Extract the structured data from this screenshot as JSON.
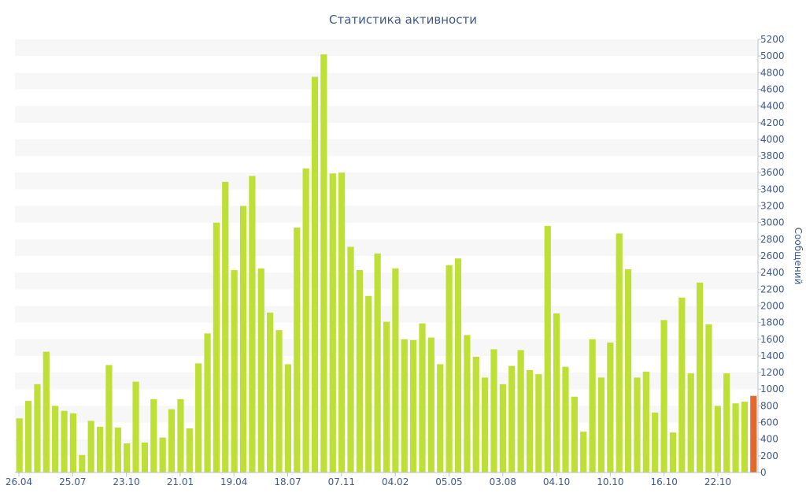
{
  "chart_data": {
    "type": "bar",
    "title": "Статистика активности",
    "ylabel": "Сообщений",
    "ylim": [
      0,
      5200
    ],
    "y_ticks": [
      0,
      200,
      400,
      600,
      800,
      1000,
      1200,
      1400,
      1600,
      1800,
      2000,
      2200,
      2400,
      2600,
      2800,
      3000,
      3200,
      3400,
      3600,
      3800,
      4000,
      4200,
      4400,
      4600,
      4800,
      5000,
      5200
    ],
    "x_tick_labels": [
      "26.04",
      "25.07",
      "23.10",
      "21.01",
      "19.04",
      "18.07",
      "07.11",
      "04.02",
      "05.05",
      "03.08",
      "04.10",
      "10.10",
      "16.10",
      "22.10"
    ],
    "grid": "horizontal bands",
    "y_axis_position": "right",
    "values": [
      650,
      860,
      1060,
      1450,
      800,
      740,
      710,
      210,
      620,
      550,
      1290,
      540,
      350,
      1090,
      360,
      880,
      420,
      760,
      880,
      530,
      1310,
      1670,
      3000,
      3490,
      2430,
      3200,
      3560,
      2450,
      1920,
      1710,
      1300,
      2940,
      3650,
      4750,
      5020,
      3590,
      3600,
      2710,
      2430,
      2120,
      2630,
      1810,
      2450,
      1600,
      1590,
      1790,
      1620,
      1300,
      2490,
      2570,
      1650,
      1390,
      1140,
      1480,
      1060,
      1280,
      1470,
      1230,
      1180,
      2960,
      1910,
      1270,
      910,
      490,
      1600,
      1140,
      1560,
      2870,
      2440,
      1140,
      1210,
      720,
      1830,
      480,
      2100,
      1190,
      2280,
      1780,
      800,
      1190,
      830,
      850,
      920
    ],
    "highlight_last": true,
    "colors": {
      "bar": "#bedf36",
      "highlight": "#e06a2c",
      "band": "#f7f7f7",
      "text": "#3e5a8a"
    }
  }
}
